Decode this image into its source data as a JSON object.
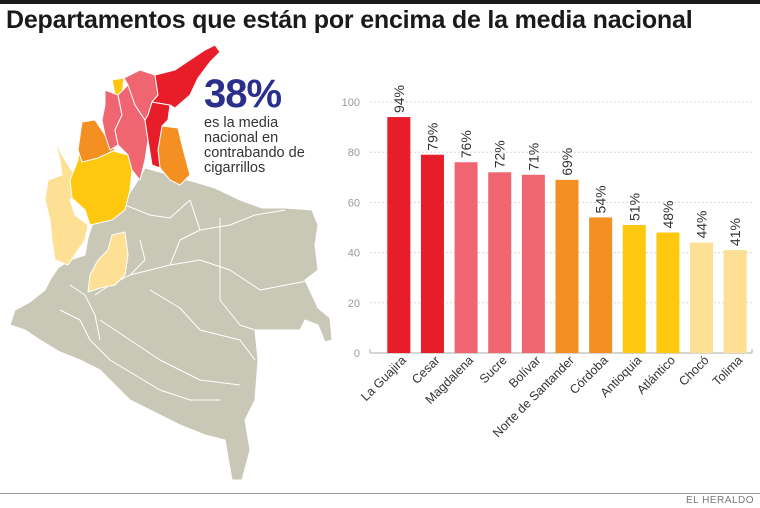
{
  "title": "Departamentos que están por encima de la media nacional",
  "callout": {
    "value": "38%",
    "text": "es la media nacional en contrabando de cigarrillos"
  },
  "credit": "EL HERALDO",
  "colors": {
    "dark_red": "#e71d2a",
    "pink": "#ef6670",
    "orange": "#f39021",
    "yellow": "#fec710",
    "light_yellow": "#fde094",
    "gray_map": "#c9c8b6",
    "callout_blue": "#2b2f8c"
  },
  "chart_data": {
    "type": "bar",
    "title": "",
    "xlabel": "",
    "ylabel": "",
    "ylim": [
      0,
      100
    ],
    "yticks": [
      0,
      20,
      40,
      60,
      80,
      100
    ],
    "grid": true,
    "categories": [
      "La Guajira",
      "Cesar",
      "Magdalena",
      "Sucre",
      "Bolívar",
      "Norte de Santander",
      "Córdoba",
      "Antioquia",
      "Atlántico",
      "Chocó",
      "Tolima"
    ],
    "values": [
      94,
      79,
      76,
      72,
      71,
      69,
      54,
      51,
      48,
      44,
      41
    ],
    "labels": [
      "94%",
      "79%",
      "76%",
      "72%",
      "71%",
      "69%",
      "54%",
      "51%",
      "48%",
      "44%",
      "41%"
    ],
    "bar_colors": [
      "#e71d2a",
      "#e71d2a",
      "#ef6670",
      "#ef6670",
      "#ef6670",
      "#f39021",
      "#f39021",
      "#fec710",
      "#fec710",
      "#fde094",
      "#fde094"
    ]
  }
}
